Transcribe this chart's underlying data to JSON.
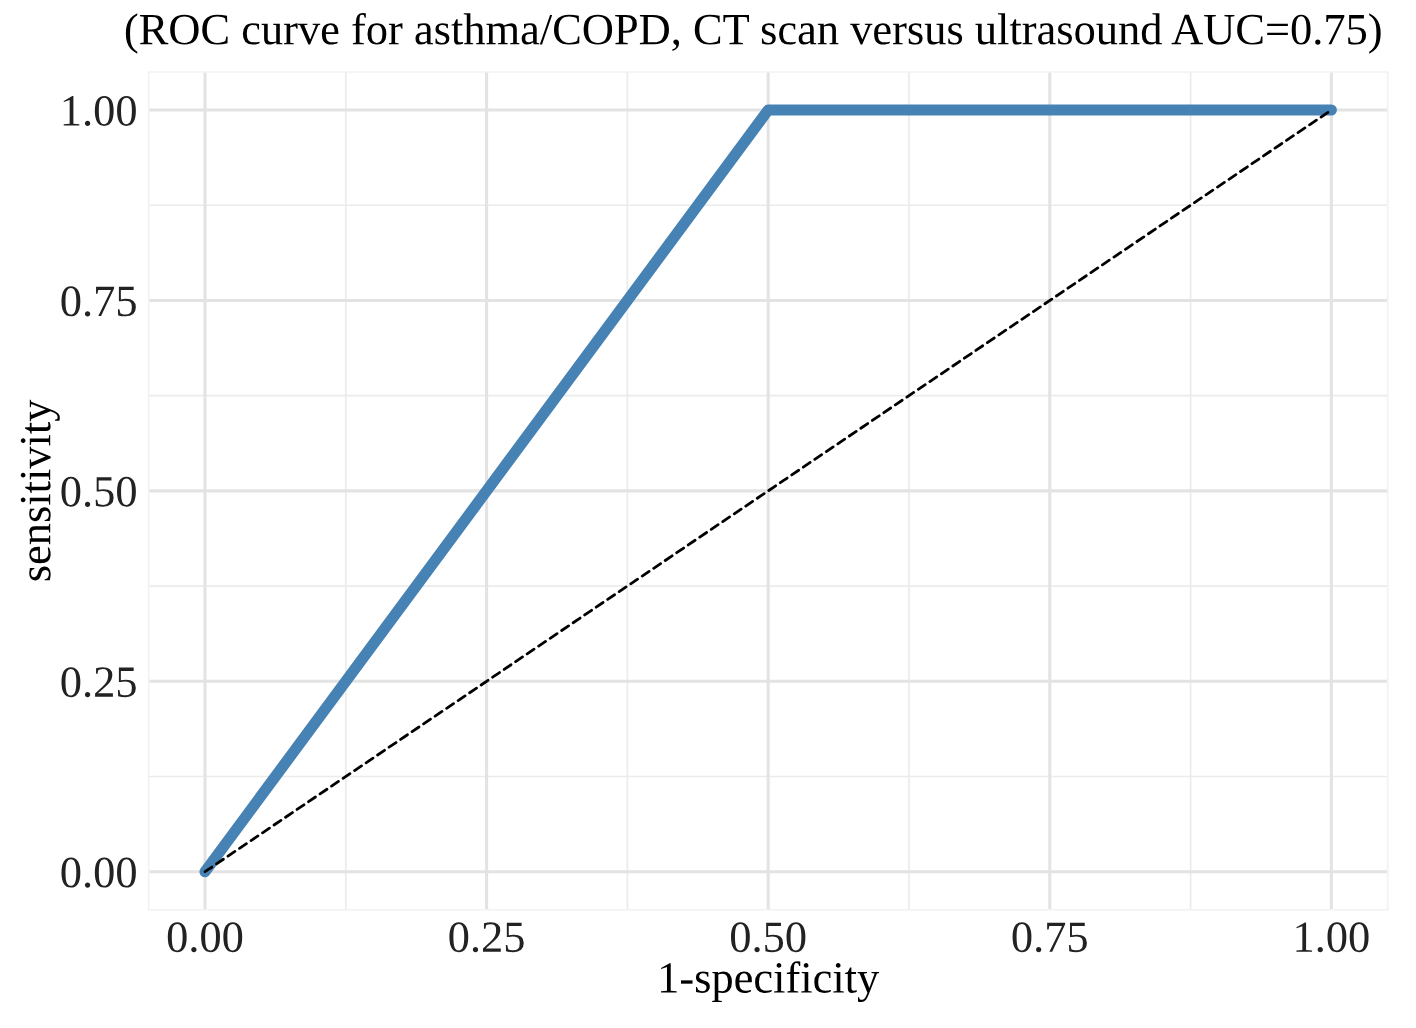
{
  "chart_data": {
    "type": "line",
    "title": "(ROC curve for asthma/COPD, CT scan versus ultrasound AUC=0.75)",
    "xlabel": "1-specificity",
    "ylabel": "sensitivity",
    "x": [
      0,
      0.5,
      1
    ],
    "series": [
      {
        "color": "#4682b4",
        "values": [
          0,
          1,
          1
        ],
        "line_style": "solid"
      },
      {
        "type": "line",
        "x": [
          0,
          1
        ],
        "color": "#000000",
        "values": [
          0,
          1
        ],
        "line_style": "dashed"
      }
    ],
    "xlim": [
      -0.05,
      1.05
    ],
    "ylim": [
      -0.05,
      1.05
    ],
    "xticks": [
      {
        "value": 0,
        "label": "0.00"
      },
      {
        "value": 0.25,
        "label": "0.25"
      },
      {
        "value": 0.5,
        "label": "0.50"
      },
      {
        "value": 0.75,
        "label": "0.75"
      },
      {
        "value": 1,
        "label": "1.00"
      }
    ],
    "yticks": [
      {
        "value": 0,
        "label": "0.00"
      },
      {
        "value": 0.25,
        "label": "0.25"
      },
      {
        "value": 0.5,
        "label": "0.50"
      },
      {
        "value": 0.75,
        "label": "0.75"
      },
      {
        "value": 1,
        "label": "1.00"
      }
    ],
    "grid": true,
    "legend": false,
    "marker": "none"
  }
}
